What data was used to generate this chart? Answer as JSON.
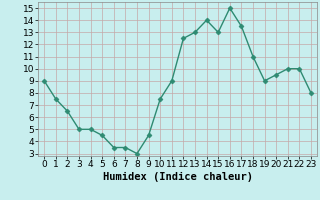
{
  "x": [
    0,
    1,
    2,
    3,
    4,
    5,
    6,
    7,
    8,
    9,
    10,
    11,
    12,
    13,
    14,
    15,
    16,
    17,
    18,
    19,
    20,
    21,
    22,
    23
  ],
  "y": [
    9,
    7.5,
    6.5,
    5,
    5,
    4.5,
    3.5,
    3.5,
    3,
    4.5,
    7.5,
    9,
    12.5,
    13,
    14,
    13,
    15,
    13.5,
    11,
    9,
    9.5,
    10,
    10,
    8
  ],
  "line_color": "#2e8b72",
  "marker": "D",
  "marker_size": 2.5,
  "bg_color": "#c8eeee",
  "grid_color": "#c4a8a8",
  "xlabel": "Humidex (Indice chaleur)",
  "xlim": [
    -0.5,
    23.5
  ],
  "ylim": [
    2.8,
    15.5
  ],
  "yticks": [
    3,
    4,
    5,
    6,
    7,
    8,
    9,
    10,
    11,
    12,
    13,
    14,
    15
  ],
  "xticks": [
    0,
    1,
    2,
    3,
    4,
    5,
    6,
    7,
    8,
    9,
    10,
    11,
    12,
    13,
    14,
    15,
    16,
    17,
    18,
    19,
    20,
    21,
    22,
    23
  ],
  "xlabel_fontsize": 7.5,
  "tick_fontsize": 6.5,
  "linewidth": 1.0
}
